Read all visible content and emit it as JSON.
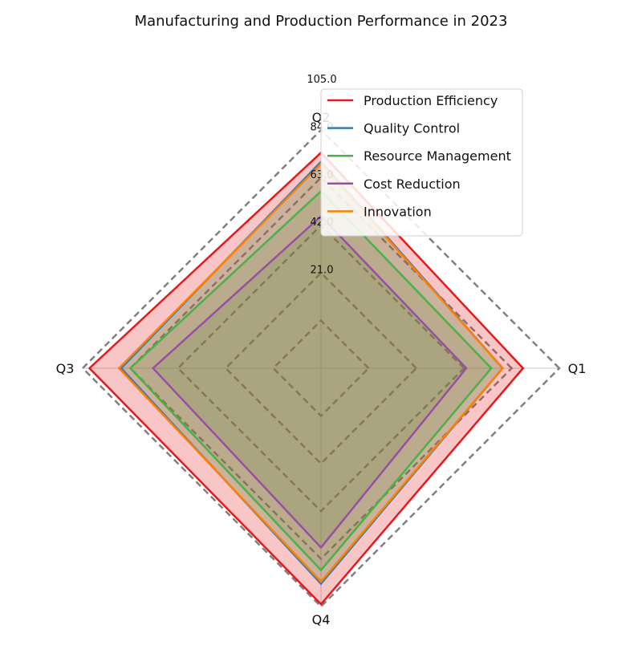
{
  "chart_data": {
    "type": "radar",
    "title": "Manufacturing and Production Performance in 2023",
    "categories": [
      "Q1",
      "Q2",
      "Q3",
      "Q4"
    ],
    "radial_ticks": [
      21.0,
      42.0,
      63.0,
      84.0,
      105.0
    ],
    "radial_tick_labels": [
      "21.0",
      "42.0",
      "63.0",
      "84.0",
      "105.0"
    ],
    "rmax": 105,
    "series": [
      {
        "name": "Production Efficiency",
        "color": "#e41a1c",
        "values": [
          89,
          95,
          102,
          104
        ]
      },
      {
        "name": "Quality Control",
        "color": "#377eb8",
        "values": [
          80,
          91,
          88,
          95
        ]
      },
      {
        "name": "Resource Management",
        "color": "#4daf4a",
        "values": [
          75,
          78,
          84,
          89
        ]
      },
      {
        "name": "Cost Reduction",
        "color": "#984ea3",
        "values": [
          64,
          67,
          74,
          79
        ]
      },
      {
        "name": "Innovation",
        "color": "#ff7f00",
        "values": [
          80,
          90,
          89,
          94
        ]
      }
    ],
    "fill_color": "#e41a1c",
    "grid_line_color": "#808080",
    "legend_placement": "top-right",
    "grid": true
  }
}
